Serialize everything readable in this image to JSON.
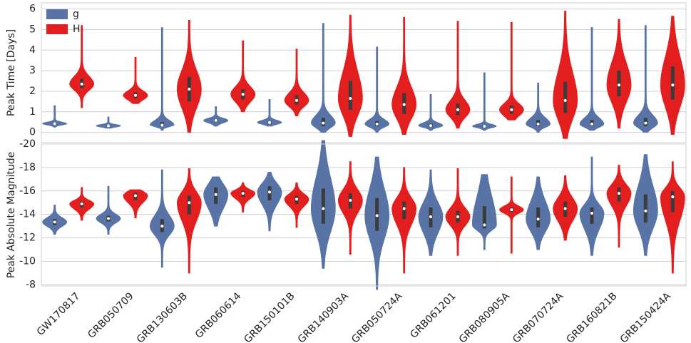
{
  "chart_data": [
    {
      "type": "violin",
      "ylabel": "Peak Time [Days]",
      "ylim": [
        -0.5,
        6.3
      ],
      "yticks": [
        0,
        1,
        2,
        3,
        4,
        5,
        6
      ],
      "grid": true,
      "legend": "upper left",
      "series": [
        {
          "name": "g",
          "color": "#5874a6",
          "values": [
            [
              0.25,
              0.38,
              0.42,
              0.47,
              1.3
            ],
            [
              0.2,
              0.28,
              0.32,
              0.36,
              0.75
            ],
            [
              0.1,
              0.3,
              0.35,
              0.5,
              5.1
            ],
            [
              0.3,
              0.5,
              0.58,
              0.65,
              1.25
            ],
            [
              0.3,
              0.42,
              0.48,
              0.55,
              1.6
            ],
            [
              0,
              0.3,
              0.45,
              0.7,
              5.3
            ],
            [
              0,
              0.3,
              0.4,
              0.55,
              4.15
            ],
            [
              0.1,
              0.27,
              0.33,
              0.42,
              1.85
            ],
            [
              0.1,
              0.25,
              0.3,
              0.36,
              2.9
            ],
            [
              0,
              0.3,
              0.4,
              0.6,
              2.4
            ],
            [
              0.1,
              0.3,
              0.4,
              0.6,
              5.1
            ],
            [
              0,
              0.3,
              0.45,
              0.7,
              5.2
            ]
          ]
        },
        {
          "name": "H",
          "color": "#e31e1e",
          "values": [
            [
              1.2,
              2.15,
              2.35,
              2.6,
              5.2
            ],
            [
              1.4,
              1.65,
              1.8,
              1.95,
              3.65
            ],
            [
              0,
              1.5,
              2.1,
              2.7,
              5.45
            ],
            [
              1.0,
              1.6,
              1.85,
              2.1,
              4.45
            ],
            [
              0.8,
              1.35,
              1.55,
              1.8,
              4.05
            ],
            [
              -0.2,
              1.1,
              1.65,
              2.5,
              5.7
            ],
            [
              -0.1,
              0.9,
              1.35,
              1.9,
              5.6
            ],
            [
              0.2,
              0.85,
              1.1,
              1.4,
              5.4
            ],
            [
              0.6,
              0.9,
              1.1,
              1.3,
              5.35
            ],
            [
              -0.3,
              0.95,
              1.55,
              2.45,
              5.9
            ],
            [
              0.2,
              1.75,
              2.3,
              3.0,
              5.5
            ],
            [
              -0.1,
              1.6,
              2.3,
              3.2,
              5.65
            ]
          ]
        }
      ]
    },
    {
      "type": "violin",
      "ylabel": "Peak Absolute Magnitude",
      "ylim": [
        -20,
        -7.9
      ],
      "y_inverted": true,
      "yticks": [
        -20,
        -18,
        -16,
        -14,
        -12,
        -10,
        -8
      ],
      "grid": true,
      "categories": [
        "GW170817",
        "GRB050709",
        "GRB130603B",
        "GRB060614",
        "GRB150101B",
        "GRB140903A",
        "GRB050724A",
        "GRB061201",
        "GRB080905A",
        "GRB070724A",
        "GRB160821B",
        "GRB150424A"
      ],
      "series": [
        {
          "color": "#5874a6",
          "values": [
            [
              -14.8,
              -13.6,
              -13.35,
              -13.1,
              -12.3
            ],
            [
              -16.4,
              -13.9,
              -13.65,
              -13.4,
              -12.3
            ],
            [
              -17.8,
              -13.6,
              -13.0,
              -12.5,
              -9.5
            ],
            [
              -17.2,
              -16.3,
              -15.7,
              -14.9,
              -13.0
            ],
            [
              -17.6,
              -16.4,
              -15.9,
              -15.2,
              -12.6
            ],
            [
              -20.3,
              -16.2,
              -14.5,
              -13.2,
              -9.4
            ],
            [
              -18.9,
              -15.4,
              -13.9,
              -12.6,
              -7.6
            ],
            [
              -17.8,
              -14.6,
              -13.8,
              -12.9,
              -10.5
            ],
            [
              -17.4,
              -14.7,
              -13.1,
              -12.8,
              -11.0
            ],
            [
              -17.2,
              -14.6,
              -13.6,
              -12.9,
              -11.0
            ],
            [
              -18.9,
              -14.6,
              -14.1,
              -13.2,
              -10.5
            ],
            [
              -19.1,
              -15.7,
              -14.3,
              -13.3,
              -10.5
            ]
          ]
        },
        {
          "color": "#e31e1e",
          "values": [
            [
              -16.3,
              -15.1,
              -14.9,
              -14.6,
              -13.5
            ],
            [
              -16.1,
              -15.85,
              -15.6,
              -15.2,
              -13.7
            ],
            [
              -17.9,
              -15.6,
              -15.0,
              -14.0,
              -9.0
            ],
            [
              -16.7,
              -16.0,
              -15.8,
              -15.5,
              -14.2
            ],
            [
              -16.7,
              -15.6,
              -15.3,
              -14.9,
              -12.9
            ],
            [
              -18.5,
              -15.8,
              -15.2,
              -14.5,
              -10.6
            ],
            [
              -18.0,
              -15.1,
              -14.5,
              -13.6,
              -9.0
            ],
            [
              -17.9,
              -14.3,
              -13.8,
              -13.3,
              -10.5
            ],
            [
              -17.2,
              -14.6,
              -14.4,
              -14.2,
              -10.7
            ],
            [
              -17.3,
              -15.1,
              -14.5,
              -13.8,
              -11.8
            ],
            [
              -18.2,
              -16.3,
              -15.8,
              -15.1,
              -11.2
            ],
            [
              -18.5,
              -16.0,
              -15.5,
              -14.2,
              -9.0
            ]
          ]
        }
      ]
    }
  ]
}
